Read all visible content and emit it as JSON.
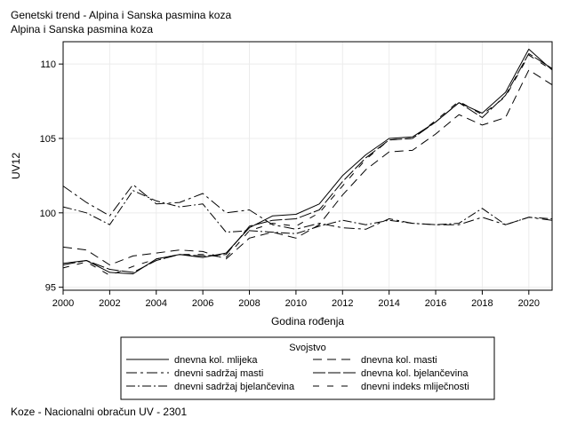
{
  "header": {
    "title": "Genetski trend - Alpina i Sanska pasmina koza",
    "subtitle": "Alpina i Sanska pasmina koza"
  },
  "footer": {
    "note": "Koze - Nacionalni obračun UV - 2301"
  },
  "chart_data": {
    "type": "line",
    "title": "Genetski trend - Alpina i Sanska pasmina koza",
    "subtitle": "Alpina i Sanska pasmina koza",
    "xlabel": "Godina rođenja",
    "ylabel": "UV12",
    "xlim": [
      2000,
      2021
    ],
    "ylim": [
      94.8,
      111.5
    ],
    "x_ticks": [
      2000,
      2002,
      2004,
      2006,
      2008,
      2010,
      2012,
      2014,
      2016,
      2018,
      2020
    ],
    "y_ticks": [
      95,
      100,
      105,
      110
    ],
    "grid": true,
    "legend_title": "Svojstvo",
    "legend_position": "bottom",
    "x": [
      2000,
      2001,
      2002,
      2003,
      2004,
      2005,
      2006,
      2007,
      2008,
      2009,
      2010,
      2011,
      2012,
      2013,
      2014,
      2015,
      2016,
      2017,
      2018,
      2019,
      2020,
      2021
    ],
    "series": [
      {
        "name": "dnevna kol. mlijeka",
        "dash": "",
        "values": [
          96.6,
          96.8,
          96.0,
          95.9,
          96.9,
          97.2,
          97.0,
          97.3,
          99.0,
          99.8,
          99.9,
          100.6,
          102.5,
          103.9,
          105.0,
          105.1,
          106.1,
          107.4,
          106.7,
          108.1,
          111.0,
          109.6
        ]
      },
      {
        "name": "dnevna kol. masti",
        "dash": "10,6",
        "values": [
          97.7,
          97.5,
          96.5,
          97.1,
          97.3,
          97.5,
          97.4,
          96.9,
          98.3,
          98.7,
          98.3,
          99.2,
          101.2,
          102.9,
          104.1,
          104.2,
          105.3,
          106.6,
          105.9,
          106.4,
          109.6,
          108.6
        ]
      },
      {
        "name": "dnevni sadržaj masti",
        "dash": "12,4,3,4",
        "values": [
          101.8,
          100.7,
          99.8,
          101.9,
          100.6,
          100.7,
          101.3,
          100.0,
          100.2,
          99.2,
          98.9,
          99.3,
          99.0,
          98.9,
          99.6,
          99.3,
          99.2,
          99.2,
          99.7,
          99.2,
          99.7,
          99.5
        ]
      },
      {
        "name": "dnevna kol. bjelančevina",
        "dash": "14,3",
        "values": [
          96.5,
          96.8,
          96.2,
          96.0,
          96.8,
          97.2,
          97.1,
          97.2,
          99.1,
          99.5,
          99.6,
          100.2,
          102.1,
          103.7,
          104.9,
          105.0,
          106.1,
          107.4,
          106.4,
          107.9,
          110.7,
          109.7
        ]
      },
      {
        "name": "dnevni sadržaj bjelančevina",
        "dash": "10,3,2,3",
        "values": [
          100.4,
          100.0,
          99.2,
          101.5,
          100.8,
          100.4,
          100.6,
          98.7,
          98.8,
          98.7,
          98.6,
          99.1,
          99.5,
          99.2,
          99.5,
          99.3,
          99.2,
          99.3,
          100.3,
          99.2,
          99.7,
          99.6
        ]
      },
      {
        "name": "dnevni indeks mliječnosti",
        "dash": "7,9",
        "values": [
          96.3,
          96.7,
          95.8,
          96.4,
          96.9,
          97.2,
          97.2,
          97.0,
          98.8,
          99.3,
          99.1,
          100.0,
          101.8,
          103.6,
          104.9,
          105.0,
          106.2,
          107.5,
          106.6,
          107.8,
          110.6,
          109.6
        ]
      }
    ]
  }
}
